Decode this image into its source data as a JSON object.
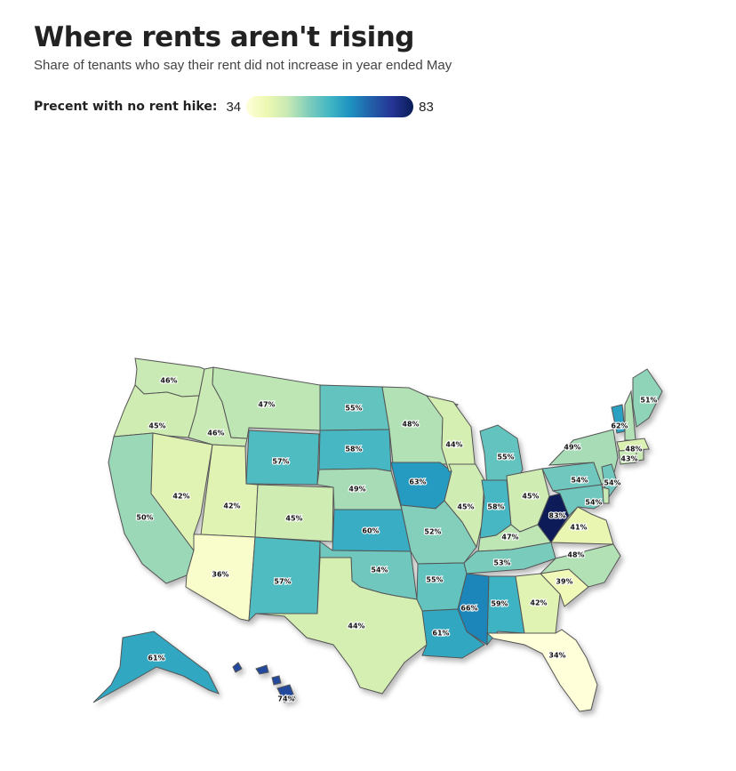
{
  "title": "Where rents aren't rising",
  "subtitle": "Share of tenants who say their rent did not increase in year ended May",
  "legend": {
    "title": "Precent with no rent hike:",
    "min": "34",
    "max": "83"
  },
  "colors": {
    "scale": [
      "#ffffd9",
      "#edf8b1",
      "#c7e9b4",
      "#7fcdbb",
      "#41b6c4",
      "#1d91c0",
      "#225ea8",
      "#253494",
      "#081d58"
    ],
    "stroke": "#555555"
  },
  "states": [
    {
      "abbr": "WA",
      "value": 46,
      "label": "46%"
    },
    {
      "abbr": "OR",
      "value": 45,
      "label": "45%"
    },
    {
      "abbr": "CA",
      "value": 50,
      "label": "50%"
    },
    {
      "abbr": "NV",
      "value": 42,
      "label": "42%"
    },
    {
      "abbr": "ID",
      "value": 46,
      "label": "46%"
    },
    {
      "abbr": "MT",
      "value": 47,
      "label": "47%"
    },
    {
      "abbr": "WY",
      "value": 57,
      "label": "57%"
    },
    {
      "abbr": "UT",
      "value": 42,
      "label": "42%"
    },
    {
      "abbr": "AZ",
      "value": 36,
      "label": "36%"
    },
    {
      "abbr": "CO",
      "value": 45,
      "label": "45%"
    },
    {
      "abbr": "NM",
      "value": 57,
      "label": "57%"
    },
    {
      "abbr": "ND",
      "value": 55,
      "label": "55%"
    },
    {
      "abbr": "SD",
      "value": 58,
      "label": "58%"
    },
    {
      "abbr": "NE",
      "value": 49,
      "label": "49%"
    },
    {
      "abbr": "KS",
      "value": 60,
      "label": "60%"
    },
    {
      "abbr": "OK",
      "value": 54,
      "label": "54%"
    },
    {
      "abbr": "TX",
      "value": 44,
      "label": "44%"
    },
    {
      "abbr": "MN",
      "value": 48,
      "label": "48%"
    },
    {
      "abbr": "IA",
      "value": 63,
      "label": "63%"
    },
    {
      "abbr": "MO",
      "value": 52,
      "label": "52%"
    },
    {
      "abbr": "AR",
      "value": 55,
      "label": "55%"
    },
    {
      "abbr": "LA",
      "value": 61,
      "label": "61%"
    },
    {
      "abbr": "WI",
      "value": 44,
      "label": "44%"
    },
    {
      "abbr": "IL",
      "value": 45,
      "label": "45%"
    },
    {
      "abbr": "MI",
      "value": 55,
      "label": "55%"
    },
    {
      "abbr": "IN",
      "value": 58,
      "label": "58%"
    },
    {
      "abbr": "OH",
      "value": 45,
      "label": "45%"
    },
    {
      "abbr": "KY",
      "value": 47,
      "label": "47%"
    },
    {
      "abbr": "TN",
      "value": 53,
      "label": "53%"
    },
    {
      "abbr": "MS",
      "value": 66,
      "label": "66%"
    },
    {
      "abbr": "AL",
      "value": 59,
      "label": "59%"
    },
    {
      "abbr": "GA",
      "value": 42,
      "label": "42%"
    },
    {
      "abbr": "FL",
      "value": 34,
      "label": "34%"
    },
    {
      "abbr": "SC",
      "value": 39,
      "label": "39%"
    },
    {
      "abbr": "NC",
      "value": 48,
      "label": "48%"
    },
    {
      "abbr": "VA",
      "value": 41,
      "label": "41%"
    },
    {
      "abbr": "WV",
      "value": 83,
      "label": "83%"
    },
    {
      "abbr": "PA",
      "value": 54,
      "label": "54%"
    },
    {
      "abbr": "NY",
      "value": 49,
      "label": "49%"
    },
    {
      "abbr": "VT",
      "value": 62,
      "label": "62%"
    },
    {
      "abbr": "NH",
      "value": 48,
      "label": "48%"
    },
    {
      "abbr": "MA",
      "value": 43,
      "label": "43%"
    },
    {
      "abbr": "ME",
      "value": 51,
      "label": "51%"
    },
    {
      "abbr": "NJ",
      "value": 54,
      "label": "54%"
    },
    {
      "abbr": "MD",
      "value": 54,
      "label": "54%"
    },
    {
      "abbr": "CT",
      "value": null,
      "label": ""
    },
    {
      "abbr": "RI",
      "value": null,
      "label": ""
    },
    {
      "abbr": "DE",
      "value": null,
      "label": ""
    },
    {
      "abbr": "AK",
      "value": 61,
      "label": "61%"
    },
    {
      "abbr": "HI",
      "value": 74,
      "label": "74%"
    }
  ]
}
